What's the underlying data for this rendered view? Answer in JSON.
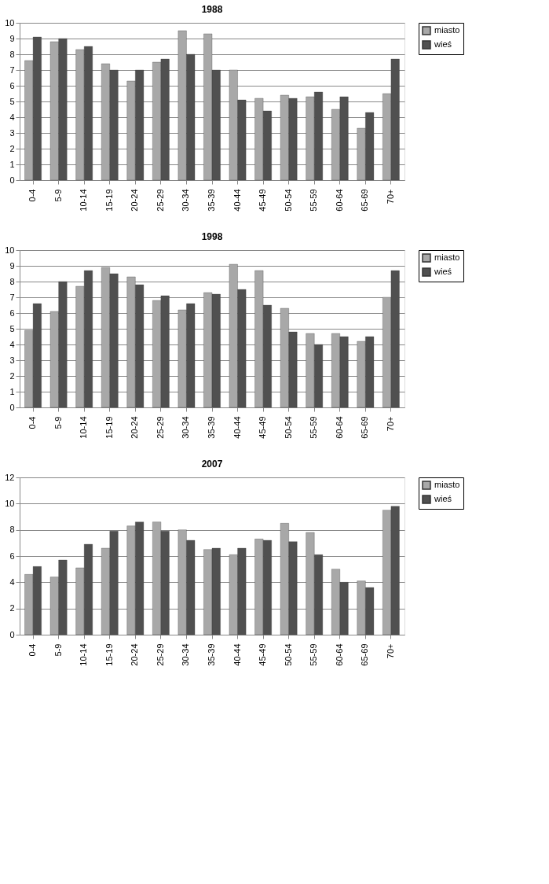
{
  "chart_data": [
    {
      "type": "bar",
      "title": "1988",
      "categories": [
        "0-4",
        "5-9",
        "10-14",
        "15-19",
        "20-24",
        "25-29",
        "30-34",
        "35-39",
        "40-44",
        "45-49",
        "50-54",
        "55-59",
        "60-64",
        "65-69",
        "70+"
      ],
      "ylim": [
        0,
        10
      ],
      "yticks": [
        0,
        1,
        2,
        3,
        4,
        5,
        6,
        7,
        8,
        9,
        10
      ],
      "grid": "y",
      "legend": "right",
      "series": [
        {
          "name": "miasto",
          "color": "#a8a8a8",
          "values": [
            7.6,
            8.8,
            8.3,
            7.4,
            6.3,
            7.5,
            9.5,
            9.3,
            7.0,
            5.2,
            5.4,
            5.3,
            4.5,
            3.3,
            5.5
          ]
        },
        {
          "name": "wieś",
          "color": "#505050",
          "values": [
            9.1,
            9.0,
            8.5,
            7.0,
            7.0,
            7.7,
            8.0,
            7.0,
            5.1,
            4.4,
            5.2,
            5.6,
            5.3,
            4.3,
            7.7
          ]
        }
      ]
    },
    {
      "type": "bar",
      "title": "1998",
      "categories": [
        "0-4",
        "5-9",
        "10-14",
        "15-19",
        "20-24",
        "25-29",
        "30-34",
        "35-39",
        "40-44",
        "45-49",
        "50-54",
        "55-59",
        "60-64",
        "65-69",
        "70+"
      ],
      "ylim": [
        0,
        10
      ],
      "yticks": [
        0,
        1,
        2,
        3,
        4,
        5,
        6,
        7,
        8,
        9,
        10
      ],
      "grid": "y",
      "legend": "right",
      "series": [
        {
          "name": "miasto",
          "color": "#a8a8a8",
          "values": [
            4.9,
            6.1,
            7.7,
            8.9,
            8.3,
            6.8,
            6.2,
            7.3,
            9.1,
            8.7,
            6.3,
            4.7,
            4.7,
            4.2,
            7.0
          ]
        },
        {
          "name": "wieś",
          "color": "#505050",
          "values": [
            6.6,
            8.0,
            8.7,
            8.5,
            7.8,
            7.1,
            6.6,
            7.2,
            7.5,
            6.5,
            4.8,
            4.0,
            4.5,
            4.5,
            8.7
          ]
        }
      ]
    },
    {
      "type": "bar",
      "title": "2007",
      "categories": [
        "0-4",
        "5-9",
        "10-14",
        "15-19",
        "20-24",
        "25-29",
        "30-34",
        "35-39",
        "40-44",
        "45-49",
        "50-54",
        "55-59",
        "60-64",
        "65-69",
        "70+"
      ],
      "ylim": [
        0,
        12
      ],
      "yticks": [
        0,
        2,
        4,
        6,
        8,
        10,
        12
      ],
      "grid": "y",
      "legend": "right",
      "series": [
        {
          "name": "miasto",
          "color": "#a8a8a8",
          "values": [
            4.6,
            4.4,
            5.1,
            6.6,
            8.3,
            8.6,
            8.0,
            6.5,
            6.1,
            7.3,
            8.5,
            7.8,
            5.0,
            4.1,
            9.5
          ]
        },
        {
          "name": "wieś",
          "color": "#505050",
          "values": [
            5.2,
            5.7,
            6.9,
            7.9,
            8.6,
            7.9,
            7.2,
            6.6,
            6.6,
            7.2,
            7.1,
            6.1,
            4.0,
            3.6,
            9.8
          ]
        }
      ]
    }
  ]
}
